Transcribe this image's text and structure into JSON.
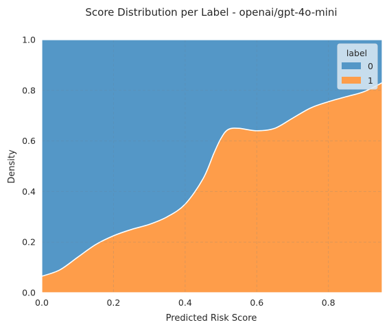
{
  "chart_data": {
    "type": "area",
    "stacking": "fill",
    "title": "Score Distribution per Label - openai/gpt-4o-mini",
    "xlabel": "Predicted Risk Score",
    "ylabel": "Density",
    "xlim": [
      0.0,
      0.95
    ],
    "ylim": [
      0.0,
      1.0
    ],
    "xticks": [
      "0.0",
      "0.2",
      "0.4",
      "0.6",
      "0.8"
    ],
    "xtick_values": [
      0.0,
      0.2,
      0.4,
      0.6,
      0.8
    ],
    "yticks": [
      "0.0",
      "0.2",
      "0.4",
      "0.6",
      "0.8",
      "1.0"
    ],
    "ytick_values": [
      0.0,
      0.2,
      0.4,
      0.6,
      0.8,
      1.0
    ],
    "grid": true,
    "legend": {
      "title": "label",
      "position": "top-right"
    },
    "series": [
      {
        "name": "0",
        "color": "#5497c7"
      },
      {
        "name": "1",
        "color": "#fe9d4a"
      }
    ],
    "boundary": {
      "x": [
        0.0,
        0.05,
        0.1,
        0.15,
        0.2,
        0.25,
        0.3,
        0.35,
        0.4,
        0.45,
        0.48,
        0.5,
        0.52,
        0.55,
        0.6,
        0.65,
        0.7,
        0.75,
        0.8,
        0.85,
        0.9,
        0.95
      ],
      "y": [
        0.065,
        0.09,
        0.14,
        0.19,
        0.225,
        0.25,
        0.27,
        0.3,
        0.35,
        0.45,
        0.55,
        0.61,
        0.645,
        0.65,
        0.64,
        0.65,
        0.69,
        0.73,
        0.755,
        0.775,
        0.795,
        0.83
      ]
    }
  }
}
